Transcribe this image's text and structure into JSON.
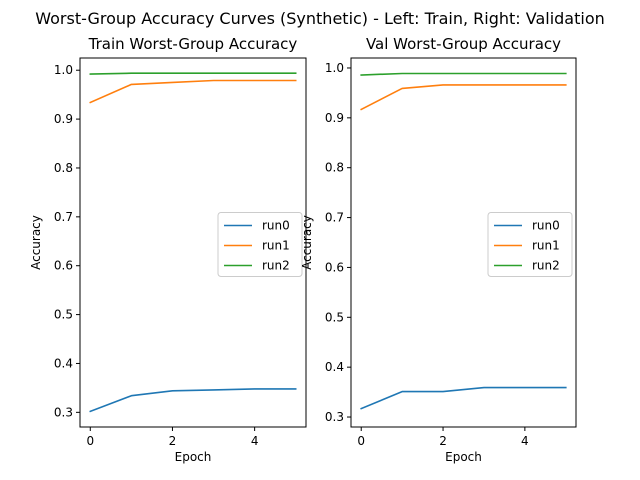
{
  "figure_title": "Worst-Group Accuracy Curves (Synthetic) - Left: Train, Right: Validation",
  "colors": {
    "run0": "#1f77b4",
    "run1": "#ff7f0e",
    "run2": "#2ca02c"
  },
  "chart_data": [
    {
      "type": "line",
      "title": "Train Worst-Group Accuracy",
      "xlabel": "Epoch",
      "ylabel": "Accuracy",
      "x": [
        0,
        1,
        2,
        3,
        4,
        5
      ],
      "xticks": [
        "0",
        "2",
        "4"
      ],
      "yticks": [
        "0.3",
        "0.4",
        "0.5",
        "0.6",
        "0.7",
        "0.8",
        "0.9",
        "1.0"
      ],
      "xlim": [
        -0.25,
        5.25
      ],
      "ylim": [
        0.27,
        1.025
      ],
      "grid": false,
      "legend": "center-right",
      "series": [
        {
          "name": "run0",
          "values": [
            0.302,
            0.334,
            0.344,
            0.346,
            0.348,
            0.348
          ]
        },
        {
          "name": "run1",
          "values": [
            0.934,
            0.971,
            0.975,
            0.979,
            0.979,
            0.979
          ]
        },
        {
          "name": "run2",
          "values": [
            0.992,
            0.994,
            0.994,
            0.994,
            0.994,
            0.994
          ]
        }
      ]
    },
    {
      "type": "line",
      "title": "Val Worst-Group Accuracy",
      "xlabel": "Epoch",
      "ylabel": "Accuracy",
      "x": [
        0,
        1,
        2,
        3,
        4,
        5
      ],
      "xticks": [
        "0",
        "2",
        "4"
      ],
      "yticks": [
        "0.3",
        "0.4",
        "0.5",
        "0.6",
        "0.7",
        "0.8",
        "0.9",
        "1.0"
      ],
      "xlim": [
        -0.25,
        5.25
      ],
      "ylim": [
        0.28,
        1.02
      ],
      "grid": false,
      "legend": "center-right",
      "series": [
        {
          "name": "run0",
          "values": [
            0.317,
            0.351,
            0.351,
            0.359,
            0.359,
            0.359
          ]
        },
        {
          "name": "run1",
          "values": [
            0.917,
            0.959,
            0.966,
            0.966,
            0.966,
            0.966
          ]
        },
        {
          "name": "run2",
          "values": [
            0.986,
            0.989,
            0.989,
            0.989,
            0.989,
            0.989
          ]
        }
      ]
    }
  ]
}
